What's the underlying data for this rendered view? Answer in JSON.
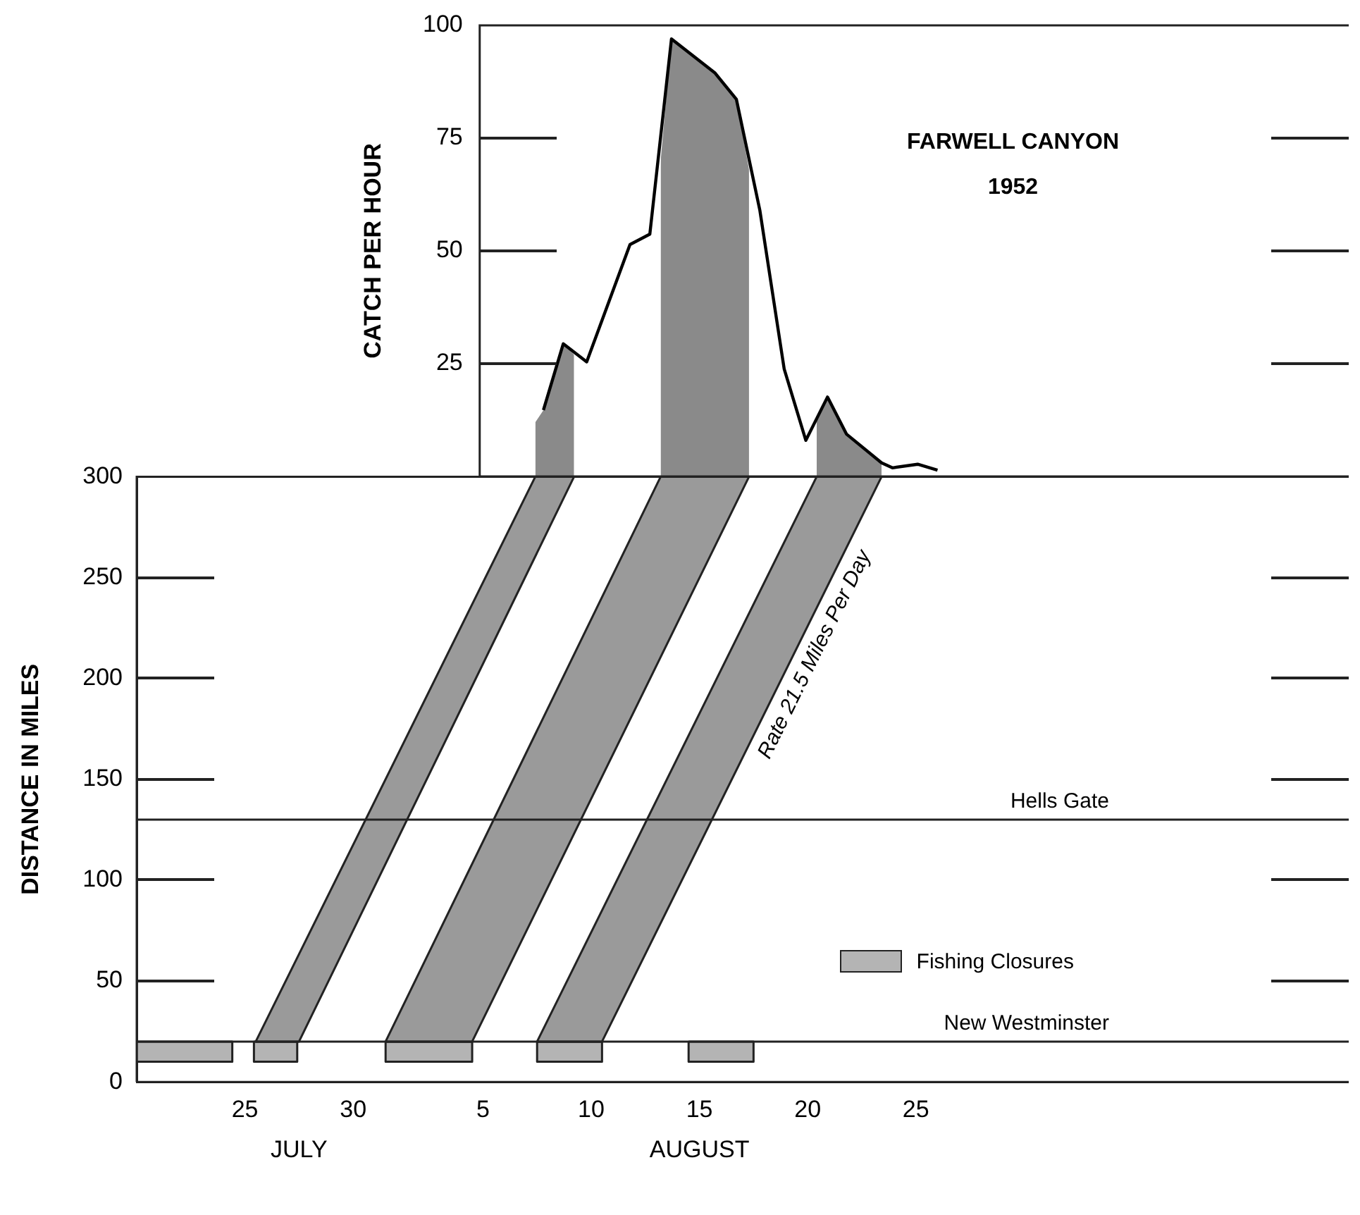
{
  "chart_data": [
    {
      "type": "line",
      "ylabel": "CATCH PER HOUR",
      "annotations": [
        "FARWELL CANYON",
        "1952"
      ],
      "xlim": [
        "1952-07-20",
        "1952-09-14"
      ],
      "ylim": [
        0,
        100
      ],
      "yticks": [
        25,
        50,
        75,
        100
      ],
      "tick_labels": "y",
      "series": [
        {
          "type": "area",
          "color": "#8a8a8a",
          "x": [
            "1952-08-07T10:00",
            "1952-08-07T19:00",
            "1952-08-08T17:00",
            "1952-08-09T05:00"
          ],
          "values": [
            12,
            14.7,
            29.4,
            27
          ]
        },
        {
          "type": "area",
          "color": "#8a8a8a",
          "x": [
            "1952-08-13T05:00",
            "1952-08-13T17:00",
            "1952-08-15T17:00",
            "1952-08-16T17:00",
            "1952-08-17T07:00"
          ],
          "values": [
            70,
            97,
            89.5,
            83.6,
            68
          ]
        },
        {
          "type": "area",
          "color": "#8a8a8a",
          "x": [
            "1952-08-20T10:00",
            "1952-08-20T22:00",
            "1952-08-21T19:00",
            "1952-08-23T10:00"
          ],
          "values": [
            12.8,
            17.6,
            9.4,
            3
          ]
        },
        {
          "color": "#000000",
          "x": [
            "1952-08-07T19:00",
            "1952-08-08T17:00",
            "1952-08-09T19:00",
            "1952-08-11T19:00",
            "1952-08-12T17:00",
            "1952-08-13T17:00",
            "1952-08-15T17:00",
            "1952-08-16T17:00",
            "1952-08-17T19:00",
            "1952-08-18T22:00",
            "1952-08-19T22:00",
            "1952-08-20T22:00",
            "1952-08-21T19:00",
            "1952-08-23T10:00",
            "1952-08-23T22:00",
            "1952-08-25T02:00",
            "1952-08-26"
          ],
          "values": [
            14.7,
            29.4,
            25.4,
            51.4,
            53.7,
            97,
            89.5,
            83.6,
            59,
            23.8,
            8,
            17.6,
            9.4,
            3,
            1.9,
            2.7,
            1.4
          ]
        }
      ]
    },
    {
      "type": "area",
      "ylabel": "DISTANCE IN MILES",
      "annotations": [
        "Rate 21.5 Miles Per Day",
        "JULY",
        "AUGUST"
      ],
      "xlim": [
        "1952-07-20",
        "1952-09-14"
      ],
      "xticks": [
        {
          "value": "1952-07-25",
          "label": "25"
        },
        {
          "value": "1952-07-30",
          "label": "30"
        },
        {
          "value": "1952-08-05",
          "label": "5"
        },
        {
          "value": "1952-08-10",
          "label": "10"
        },
        {
          "value": "1952-08-15",
          "label": "15"
        },
        {
          "value": "1952-08-20",
          "label": "20"
        },
        {
          "value": "1952-08-25",
          "label": "25"
        }
      ],
      "ylim": [
        0,
        300
      ],
      "yticks": [
        0,
        50,
        100,
        150,
        200,
        250,
        300
      ],
      "ref_lines": [
        {
          "axis": "y",
          "value": 130,
          "label": "Hells Gate"
        },
        {
          "axis": "y",
          "value": 20,
          "label": "New Westminster"
        }
      ],
      "legend": "right",
      "series": [
        {
          "color": "#9a9a9a",
          "x": [
            "1952-07-25T12:00",
            "1952-07-27T12:00",
            "1952-08-09T05:00",
            "1952-08-07T10:00",
            "1952-07-25T12:00"
          ],
          "values": [
            20,
            20,
            300,
            300,
            20
          ]
        },
        {
          "color": "#9a9a9a",
          "x": [
            "1952-07-31T12:00",
            "1952-08-04T12:00",
            "1952-08-17T07:00",
            "1952-08-13T05:00",
            "1952-07-31T12:00"
          ],
          "values": [
            20,
            20,
            300,
            300,
            20
          ]
        },
        {
          "color": "#9a9a9a",
          "x": [
            "1952-08-07T12:00",
            "1952-08-10T12:00",
            "1952-08-23T10:00",
            "1952-08-20T10:00",
            "1952-08-07T12:00"
          ],
          "values": [
            20,
            20,
            300,
            300,
            20
          ]
        },
        {
          "name": "Fishing Closures",
          "color": "#b4b4b4",
          "x": [
            "1952-07-20",
            "1952-07-24T10:00",
            "1952-07-24T10:00",
            "1952-07-20",
            "1952-07-20"
          ],
          "values": [
            20,
            20,
            10,
            10,
            20
          ]
        },
        {
          "color": "#b4b4b4",
          "x": [
            "1952-07-25T10:00",
            "1952-07-27T10:00",
            "1952-07-27T10:00",
            "1952-07-25T10:00",
            "1952-07-25T10:00"
          ],
          "values": [
            20,
            20,
            10,
            10,
            20
          ]
        },
        {
          "color": "#b4b4b4",
          "x": [
            "1952-07-31T12:00",
            "1952-08-04T12:00",
            "1952-08-04T12:00",
            "1952-07-31T12:00",
            "1952-07-31T12:00"
          ],
          "values": [
            20,
            20,
            10,
            10,
            20
          ]
        },
        {
          "color": "#b4b4b4",
          "x": [
            "1952-08-07T12:00",
            "1952-08-10T12:00",
            "1952-08-10T12:00",
            "1952-08-07T12:00",
            "1952-08-07T12:00"
          ],
          "values": [
            20,
            20,
            10,
            10,
            20
          ]
        },
        {
          "color": "#b4b4b4",
          "x": [
            "1952-08-14T12:00",
            "1952-08-17T12:00",
            "1952-08-17T12:00",
            "1952-08-14T12:00",
            "1952-08-14T12:00"
          ],
          "values": [
            20,
            20,
            10,
            10,
            20
          ]
        }
      ]
    }
  ]
}
